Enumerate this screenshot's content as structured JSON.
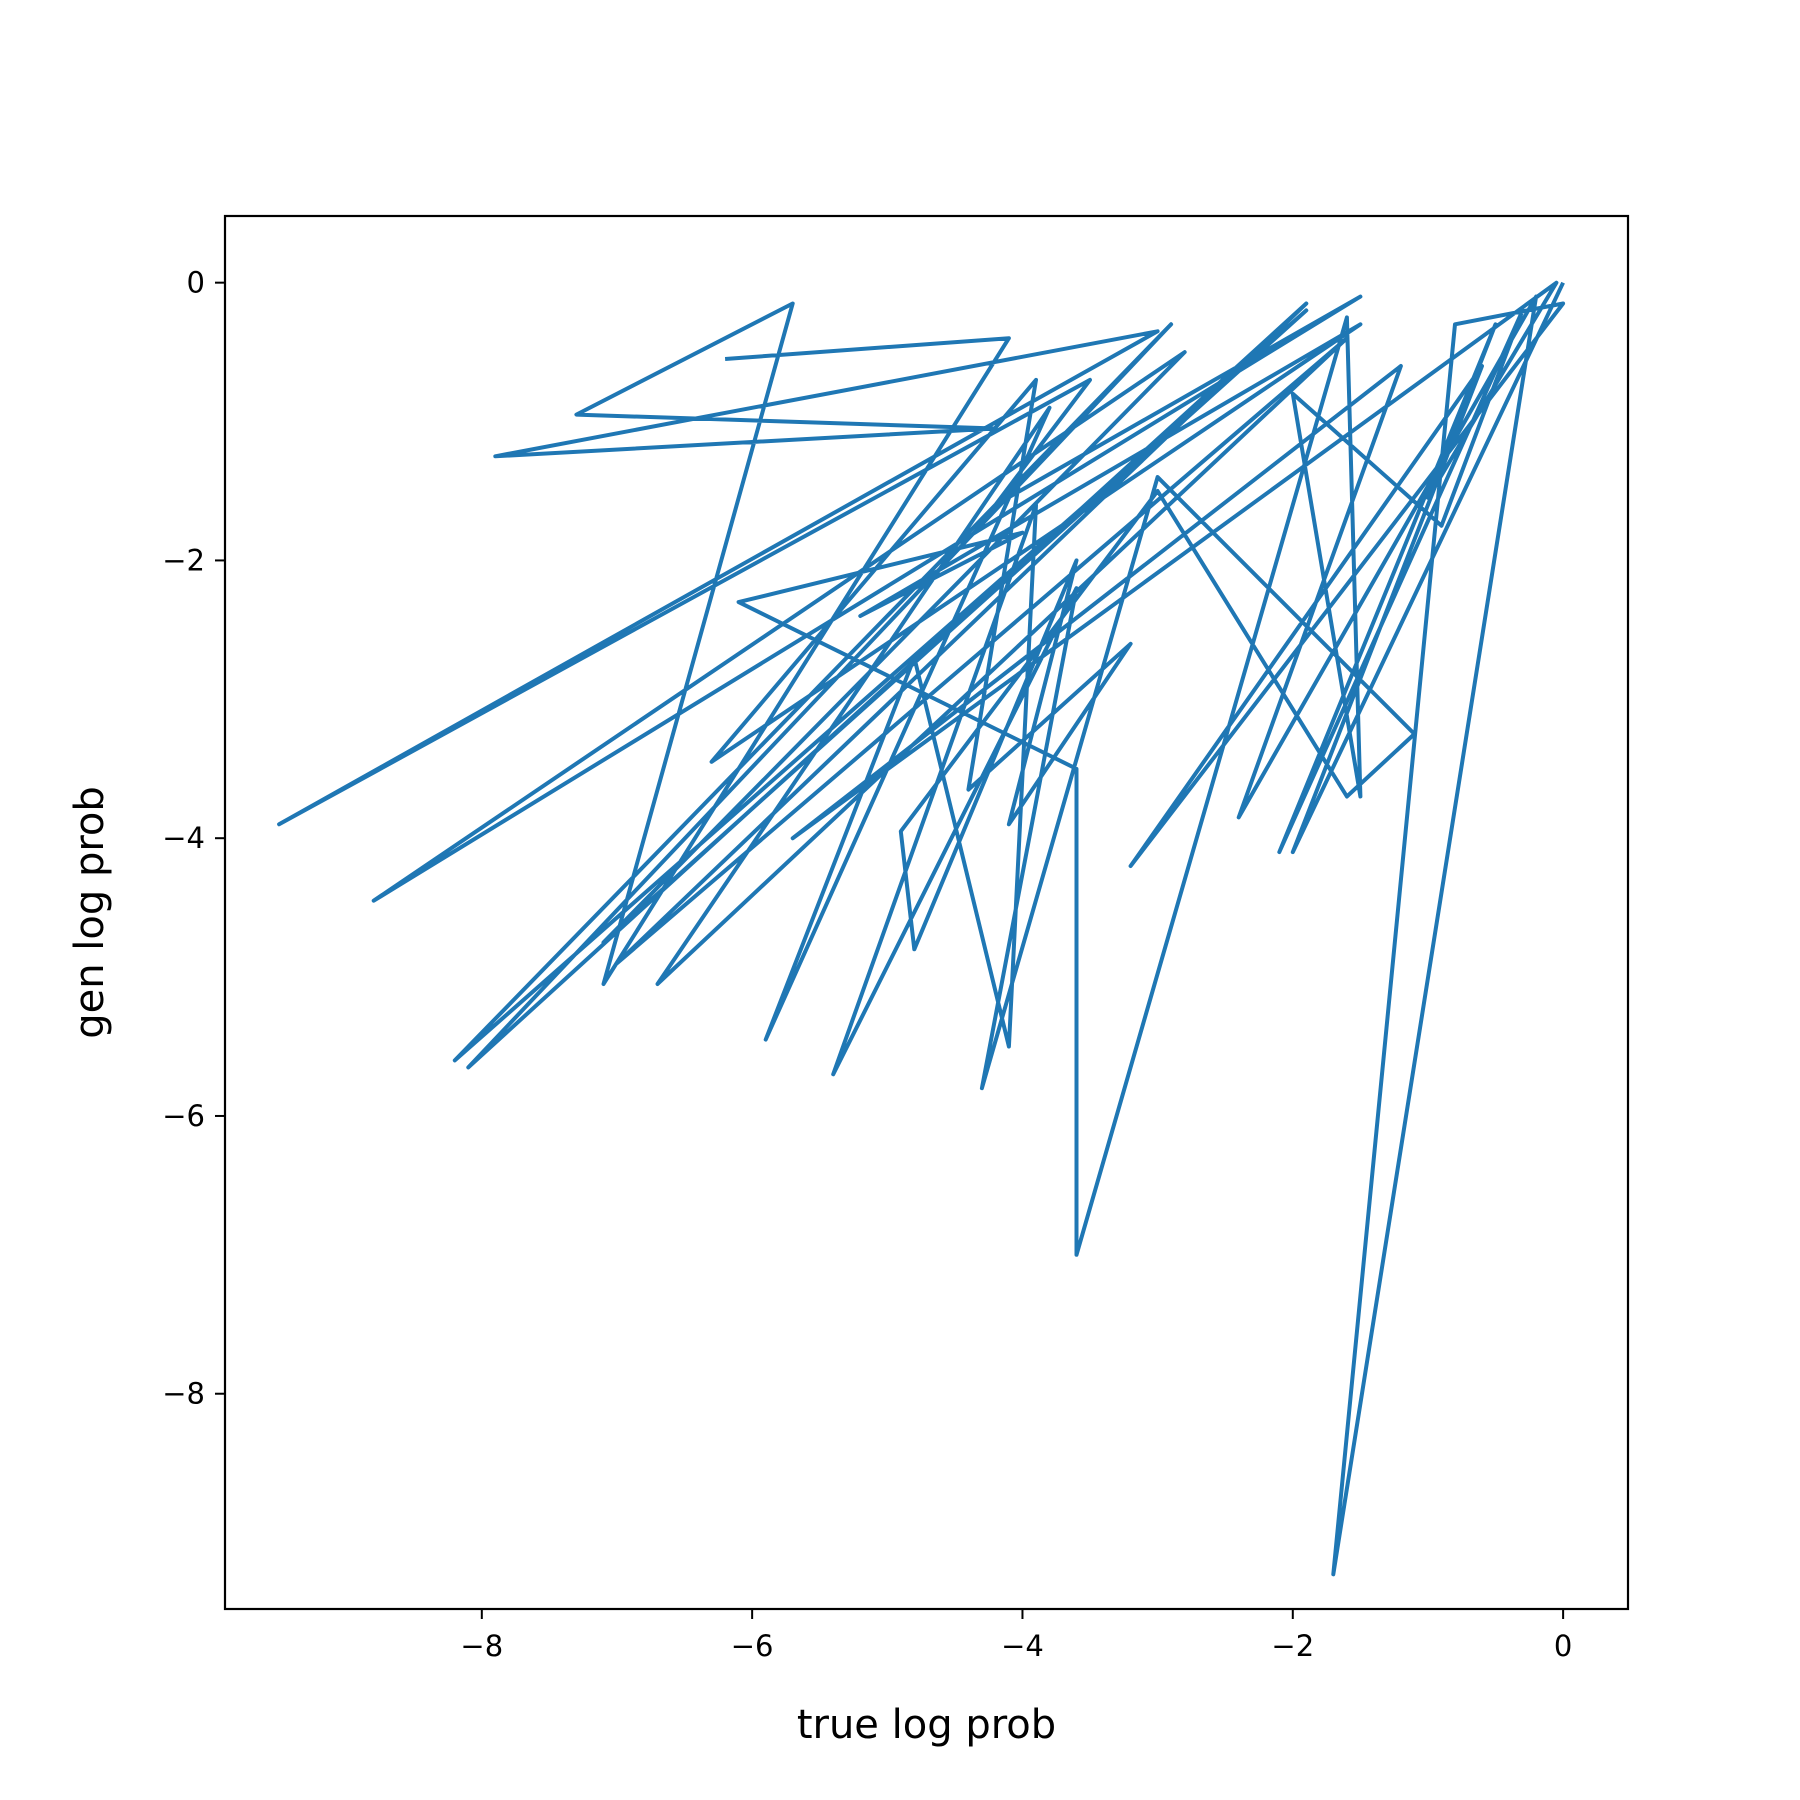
{
  "chart_data": {
    "type": "line",
    "title": "",
    "xlabel": "true log prob",
    "ylabel": "gen log prob",
    "xlim": [
      -9.9,
      0.48
    ],
    "ylim": [
      -9.55,
      0.48
    ],
    "xticks": [
      -8,
      -6,
      -4,
      -2,
      0
    ],
    "yticks": [
      0,
      -2,
      -4,
      -6,
      -8
    ],
    "xtick_labels": [
      "−8",
      "−6",
      "−4",
      "−2",
      "0"
    ],
    "ytick_labels": [
      "0",
      "−2",
      "−4",
      "−6",
      "−8"
    ],
    "grid": false,
    "legend": "none",
    "series": [
      {
        "color": "#1f77b4",
        "x": [
          -6.2,
          -4.1,
          -7.1,
          -5.7,
          -7.3,
          -4.2,
          -7.9,
          -3.0,
          -9.5,
          -3.5,
          -4.2,
          -1.5,
          -8.8,
          -2.8,
          -7.1,
          -1.9,
          -8.2,
          -2.9,
          -8.1,
          -1.9,
          -7.0,
          -1.6,
          -6.7,
          -3.8,
          -5.9,
          -4.8,
          -4.1,
          -3.9,
          -5.4,
          -3.6,
          -4.3,
          -3.0,
          -1.1,
          -1.6,
          -3.0,
          -4.9,
          -4.8,
          -3.6,
          -4.1,
          -3.2,
          -4.4,
          -3.9,
          -6.3,
          -1.5,
          -5.2,
          -4.0,
          -6.1,
          -3.6,
          -3.6,
          -1.6,
          -1.5,
          -2.0,
          -0.9,
          -0.3,
          -2.1,
          -0.5,
          -1.0,
          -0.05,
          -5.7,
          -1.2,
          -2.4,
          -0.2,
          -1.7,
          -0.8,
          0.0,
          -3.2,
          -0.6,
          -2.0,
          0.0
        ],
        "y": [
          -0.55,
          -0.4,
          -5.05,
          -0.15,
          -0.95,
          -1.05,
          -1.25,
          -0.35,
          -3.9,
          -0.7,
          -1.6,
          -0.1,
          -4.45,
          -0.5,
          -4.75,
          -0.2,
          -5.6,
          -0.3,
          -5.65,
          -0.15,
          -4.9,
          -0.4,
          -5.05,
          -0.9,
          -5.45,
          -2.7,
          -5.5,
          -1.6,
          -5.7,
          -2.2,
          -5.8,
          -1.4,
          -3.25,
          -3.7,
          -1.5,
          -3.95,
          -4.8,
          -2.0,
          -3.9,
          -2.6,
          -3.65,
          -0.7,
          -3.45,
          -0.3,
          -2.4,
          -1.8,
          -2.3,
          -3.5,
          -7.0,
          -0.25,
          -3.7,
          -0.8,
          -1.75,
          -0.2,
          -4.1,
          -0.3,
          -1.55,
          0.0,
          -4.0,
          -0.6,
          -3.85,
          -0.1,
          -9.3,
          -0.3,
          -0.15,
          -4.2,
          -0.6,
          -4.1,
          0.0
        ]
      }
    ]
  }
}
